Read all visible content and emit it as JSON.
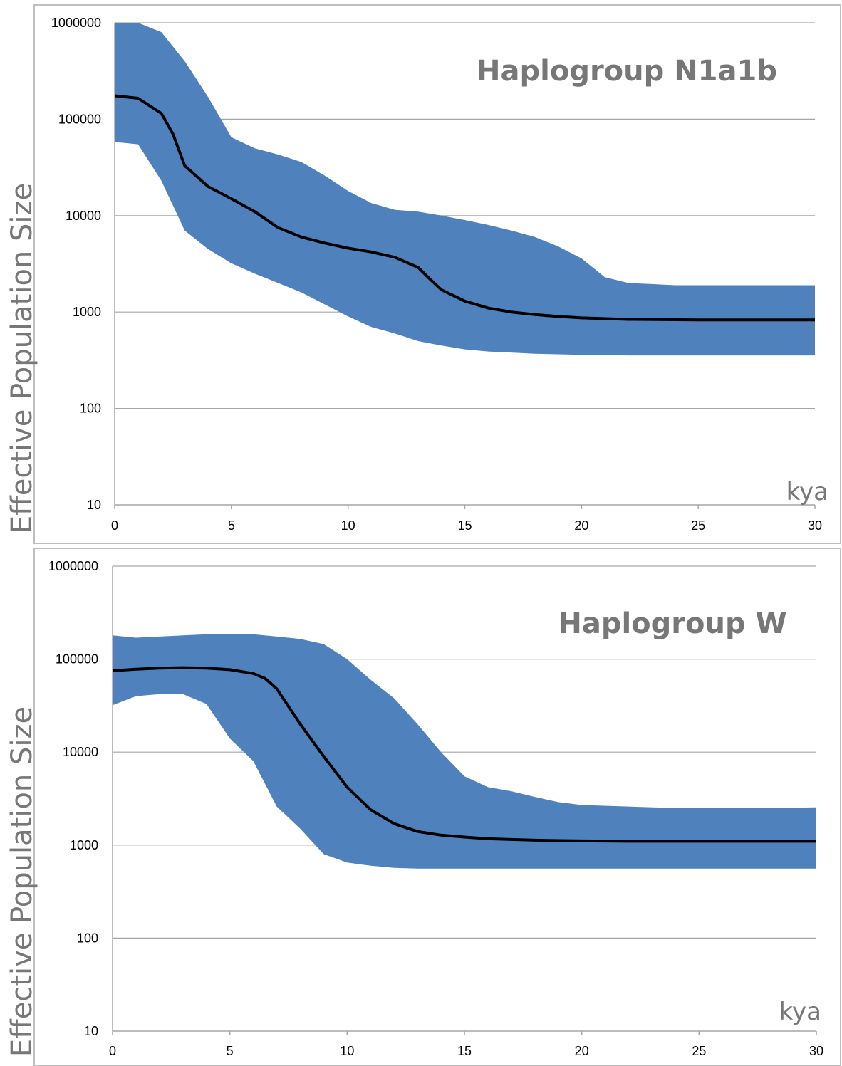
{
  "chart_data": [
    {
      "type": "area",
      "title": "Haplogroup N1a1b",
      "xlabel": "kya",
      "ylabel": "Effective Population Size",
      "xlim": [
        0,
        30
      ],
      "ylim": [
        10,
        1000000
      ],
      "yscale": "log",
      "x_ticks": [
        "0",
        "5",
        "10",
        "15",
        "20",
        "25",
        "30"
      ],
      "y_ticks": [
        "10",
        "100",
        "1000",
        "10000",
        "100000",
        "1000000"
      ],
      "grid": true,
      "colors": {
        "band": "#4f81bd",
        "median": "#000000",
        "grid": "#a6a6a6"
      },
      "series": [
        {
          "kind": "interval",
          "x": [
            0,
            1,
            2,
            3,
            4,
            5,
            6,
            7,
            8,
            9,
            10,
            11,
            12,
            13,
            14,
            15,
            16,
            17,
            18,
            19,
            20,
            21,
            22,
            23,
            24,
            25,
            26,
            27,
            28,
            29,
            30
          ],
          "upper": [
            1000000,
            1000000,
            800000,
            400000,
            170000,
            65000,
            50000,
            43000,
            36000,
            26000,
            18000,
            13500,
            11500,
            11000,
            10000,
            9000,
            8000,
            7000,
            6000,
            4800,
            3600,
            2300,
            2000,
            1950,
            1900,
            1900,
            1900,
            1900,
            1900,
            1900,
            1900
          ],
          "lower": [
            58000,
            55000,
            23000,
            7000,
            4500,
            3200,
            2500,
            2000,
            1600,
            1200,
            900,
            700,
            600,
            500,
            450,
            410,
            390,
            380,
            370,
            365,
            360,
            358,
            355,
            355,
            355,
            355,
            355,
            355,
            355,
            355,
            355
          ]
        },
        {
          "kind": "median",
          "x": [
            0,
            1,
            2,
            2.5,
            3,
            4,
            5,
            6,
            7,
            8,
            9,
            10,
            11,
            12,
            13,
            13.5,
            14,
            15,
            16,
            17,
            18,
            19,
            20,
            22,
            25,
            30
          ],
          "values": [
            175000,
            165000,
            115000,
            70000,
            33000,
            20000,
            15000,
            11000,
            7500,
            6000,
            5200,
            4600,
            4200,
            3700,
            2900,
            2200,
            1700,
            1300,
            1100,
            1000,
            940,
            900,
            870,
            840,
            830,
            830
          ]
        }
      ]
    },
    {
      "type": "area",
      "title": "Haplogroup W",
      "xlabel": "kya",
      "ylabel": "Effective Population Size",
      "xlim": [
        0,
        30
      ],
      "ylim": [
        10,
        1000000
      ],
      "yscale": "log",
      "x_ticks": [
        "0",
        "5",
        "10",
        "15",
        "20",
        "25",
        "30"
      ],
      "y_ticks": [
        "10",
        "100",
        "1000",
        "10000",
        "100000",
        "1000000"
      ],
      "grid": true,
      "colors": {
        "band": "#4f81bd",
        "median": "#000000",
        "grid": "#a6a6a6"
      },
      "series": [
        {
          "kind": "interval",
          "x": [
            0,
            1,
            2,
            3,
            4,
            5,
            6,
            7,
            8,
            9,
            10,
            11,
            12,
            13,
            14,
            15,
            16,
            17,
            18,
            19,
            20,
            22,
            24,
            26,
            28,
            30
          ],
          "upper": [
            180000,
            170000,
            175000,
            180000,
            185000,
            185000,
            185000,
            175000,
            165000,
            145000,
            100000,
            60000,
            38000,
            20000,
            10000,
            5500,
            4200,
            3800,
            3300,
            2900,
            2700,
            2600,
            2500,
            2500,
            2500,
            2550
          ],
          "lower": [
            32000,
            40000,
            42000,
            42000,
            33000,
            14000,
            8000,
            2600,
            1500,
            800,
            650,
            600,
            570,
            560,
            560,
            560,
            560,
            560,
            560,
            560,
            560,
            560,
            560,
            560,
            560,
            560
          ]
        },
        {
          "kind": "median",
          "x": [
            0,
            1,
            2,
            3,
            4,
            5,
            6,
            6.5,
            7,
            8,
            9,
            10,
            11,
            12,
            13,
            14,
            15,
            16,
            17,
            18,
            20,
            22,
            25,
            30
          ],
          "values": [
            75000,
            78000,
            80000,
            81000,
            80000,
            77000,
            70000,
            62000,
            48000,
            20000,
            9000,
            4200,
            2400,
            1700,
            1400,
            1280,
            1220,
            1170,
            1150,
            1130,
            1110,
            1100,
            1100,
            1100
          ]
        }
      ]
    }
  ]
}
